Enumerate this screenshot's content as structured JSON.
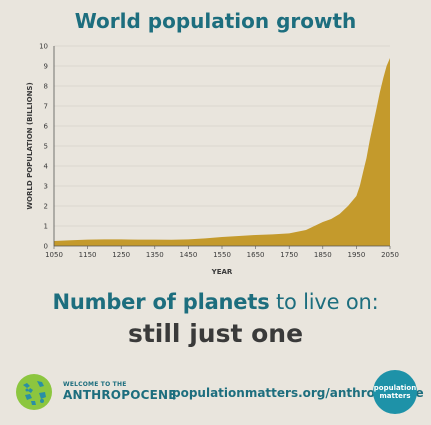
{
  "chart_data": {
    "type": "area",
    "title": "World population growth",
    "xlabel": "YEAR",
    "ylabel": "WORLD POPULATION (BILLIONS)",
    "xlim": [
      1050,
      2050
    ],
    "ylim": [
      0,
      10
    ],
    "x_ticks": [
      1050,
      1150,
      1250,
      1350,
      1450,
      1550,
      1650,
      1750,
      1850,
      1950,
      2050
    ],
    "y_ticks": [
      0,
      1,
      2,
      3,
      4,
      5,
      6,
      7,
      8,
      9,
      10
    ],
    "grid": true,
    "fill_color": "#c49a2c",
    "series": [
      {
        "x": [
          1050,
          1100,
          1150,
          1200,
          1250,
          1300,
          1350,
          1400,
          1450,
          1500,
          1550,
          1600,
          1650,
          1700,
          1750,
          1800,
          1850,
          1875,
          1900,
          1925,
          1950,
          1960,
          1970,
          1980,
          1990,
          2000,
          2010,
          2020,
          2030,
          2040,
          2050
        ],
        "y": [
          0.25,
          0.29,
          0.32,
          0.33,
          0.33,
          0.32,
          0.32,
          0.31,
          0.33,
          0.38,
          0.45,
          0.5,
          0.55,
          0.58,
          0.63,
          0.8,
          1.2,
          1.35,
          1.6,
          2.0,
          2.5,
          3.0,
          3.7,
          4.4,
          5.3,
          6.1,
          6.9,
          7.7,
          8.4,
          9.0,
          9.4
        ]
      }
    ]
  },
  "tagline": {
    "part1": "Number of planets",
    "part2": " to live on:",
    "line2": "still just one"
  },
  "footer": {
    "welcome": "WELCOME TO THE",
    "anthropocene": "ANTHROPOCENE",
    "url": "populationmatters.org/anthropocene",
    "badge_line1": "population",
    "badge_line2": "matters"
  },
  "colors": {
    "accent": "#1d6e7e",
    "badge": "#1e92a8",
    "area": "#c49a2c"
  }
}
